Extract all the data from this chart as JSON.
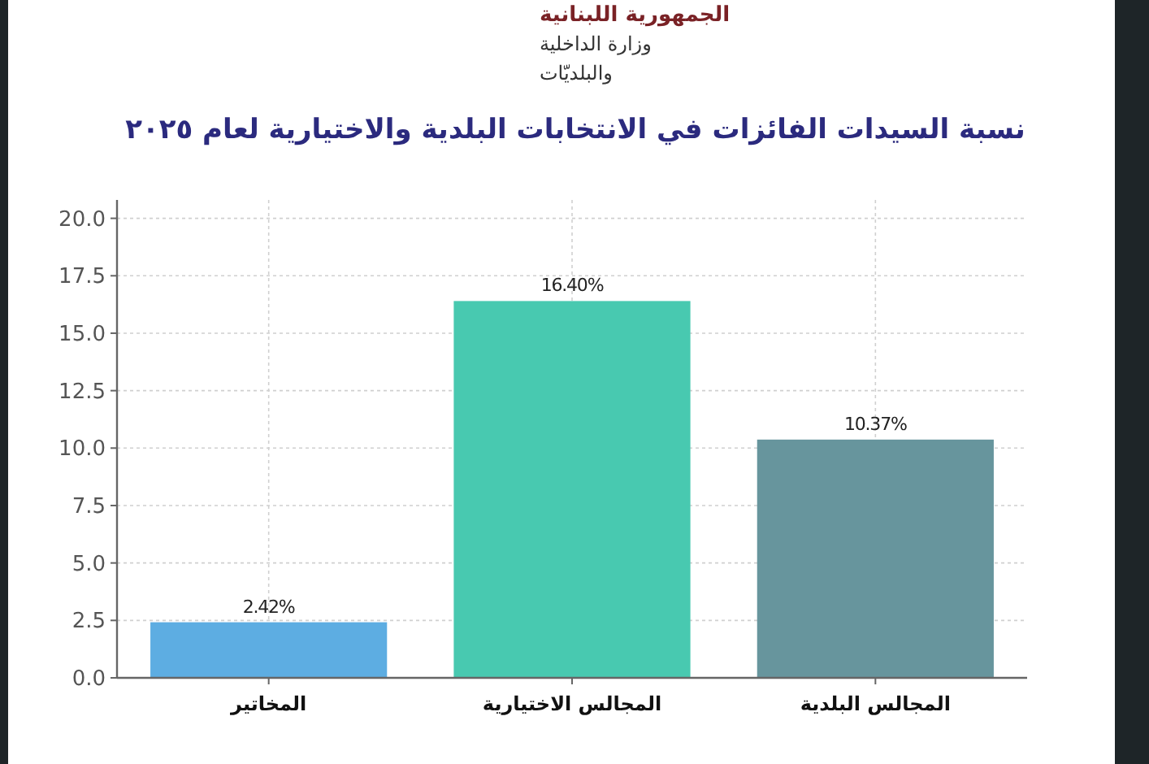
{
  "chart_data": {
    "type": "bar",
    "title": "نسبة السيدات الفائزات في الانتخابات البلدية والاختيارية لعام ٢٠٢٥",
    "annotations": [
      "الجمهورية اللبنانية",
      "وزارة الداخلية",
      "والبلديّات"
    ],
    "categories": [
      "المخاتير",
      "المجالس الاختيارية",
      "المجالس البلدية"
    ],
    "values": [
      2.42,
      16.4,
      10.37
    ],
    "colors": [
      "#5dade2",
      "#48c9b0",
      "#67959d"
    ],
    "value_labels": [
      "2.42%",
      "16.40%",
      "10.37%"
    ],
    "ylim": [
      0,
      20.8
    ],
    "yticks": [
      {
        "value": 0,
        "label": "0.0"
      },
      2.5,
      {
        "value": 5,
        "label": "5.0"
      },
      7.5,
      {
        "value": 10,
        "label": "10.0"
      },
      12.5,
      {
        "value": 15,
        "label": "15.0"
      },
      17.5,
      {
        "value": 20,
        "label": "20.0"
      }
    ],
    "grid": true
  }
}
